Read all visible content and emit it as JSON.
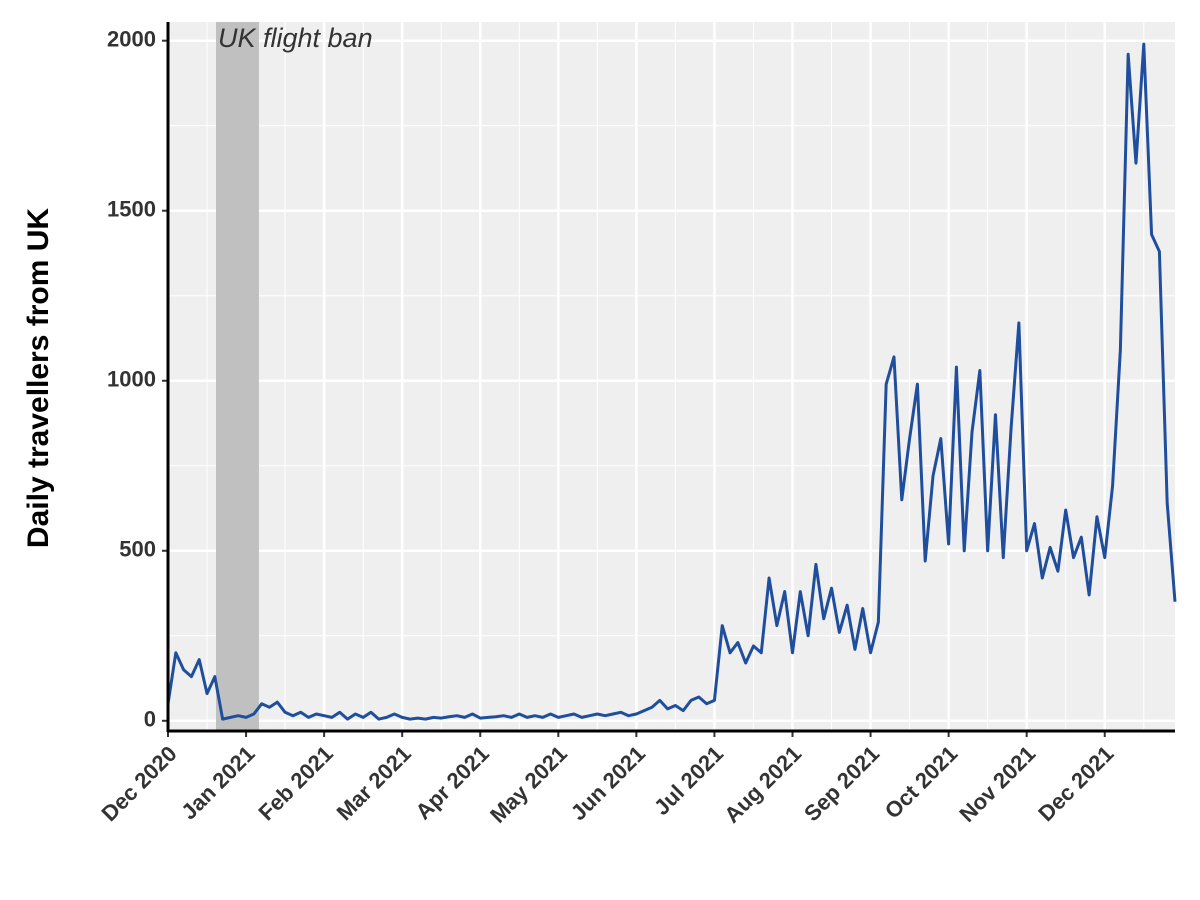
{
  "chart_data": {
    "type": "line",
    "ylabel": "Daily travellers from UK",
    "categories": [
      "Dec 2020",
      null,
      null,
      null,
      null,
      null,
      null,
      null,
      null,
      null,
      "Jan 2021",
      null,
      null,
      null,
      null,
      null,
      null,
      null,
      null,
      null,
      "Feb 2021",
      null,
      null,
      null,
      null,
      null,
      null,
      null,
      null,
      null,
      "Mar 2021",
      null,
      null,
      null,
      null,
      null,
      null,
      null,
      null,
      null,
      "Apr 2021",
      null,
      null,
      null,
      null,
      null,
      null,
      null,
      null,
      null,
      "May 2021",
      null,
      null,
      null,
      null,
      null,
      null,
      null,
      null,
      null,
      "Jun 2021",
      null,
      null,
      null,
      null,
      null,
      null,
      null,
      null,
      null,
      "Jul 2021",
      null,
      null,
      null,
      null,
      null,
      null,
      null,
      null,
      null,
      "Aug 2021",
      null,
      null,
      null,
      null,
      null,
      null,
      null,
      null,
      null,
      "Sep 2021",
      null,
      null,
      null,
      null,
      null,
      null,
      null,
      null,
      null,
      "Oct 2021",
      null,
      null,
      null,
      null,
      null,
      null,
      null,
      null,
      null,
      "Nov 2021",
      null,
      null,
      null,
      null,
      null,
      null,
      null,
      null,
      null,
      "Dec 2021",
      null,
      null,
      null,
      null,
      null,
      null,
      null,
      null,
      null
    ],
    "values": [
      50,
      200,
      150,
      130,
      180,
      80,
      130,
      5,
      10,
      15,
      10,
      20,
      50,
      40,
      55,
      25,
      15,
      25,
      10,
      20,
      15,
      10,
      25,
      5,
      20,
      10,
      25,
      5,
      10,
      20,
      10,
      5,
      8,
      5,
      10,
      8,
      12,
      15,
      10,
      20,
      8,
      10,
      12,
      15,
      10,
      20,
      10,
      15,
      10,
      20,
      10,
      15,
      20,
      10,
      15,
      20,
      15,
      20,
      25,
      15,
      20,
      30,
      40,
      60,
      35,
      45,
      30,
      60,
      70,
      50,
      60,
      280,
      200,
      230,
      170,
      220,
      200,
      420,
      280,
      380,
      200,
      380,
      250,
      460,
      300,
      390,
      260,
      340,
      210,
      330,
      200,
      290,
      990,
      1070,
      650,
      830,
      990,
      470,
      720,
      830,
      520,
      1040,
      500,
      850,
      1030,
      500,
      900,
      480,
      860,
      1170,
      500,
      580,
      420,
      510,
      440,
      620,
      480,
      540,
      370,
      600,
      480,
      690,
      1090,
      1960,
      1640,
      1990,
      1430,
      1380,
      640,
      350
    ],
    "color": "#1f4e9c",
    "ylim": [
      -30,
      2055
    ],
    "yticks": [
      0,
      500,
      1000,
      1500,
      2000
    ],
    "grid": true,
    "annotations": [
      {
        "text": "UK flight ban",
        "xspan": [
          6.15,
          11.65
        ],
        "color": "#c0c0c0"
      }
    ]
  }
}
